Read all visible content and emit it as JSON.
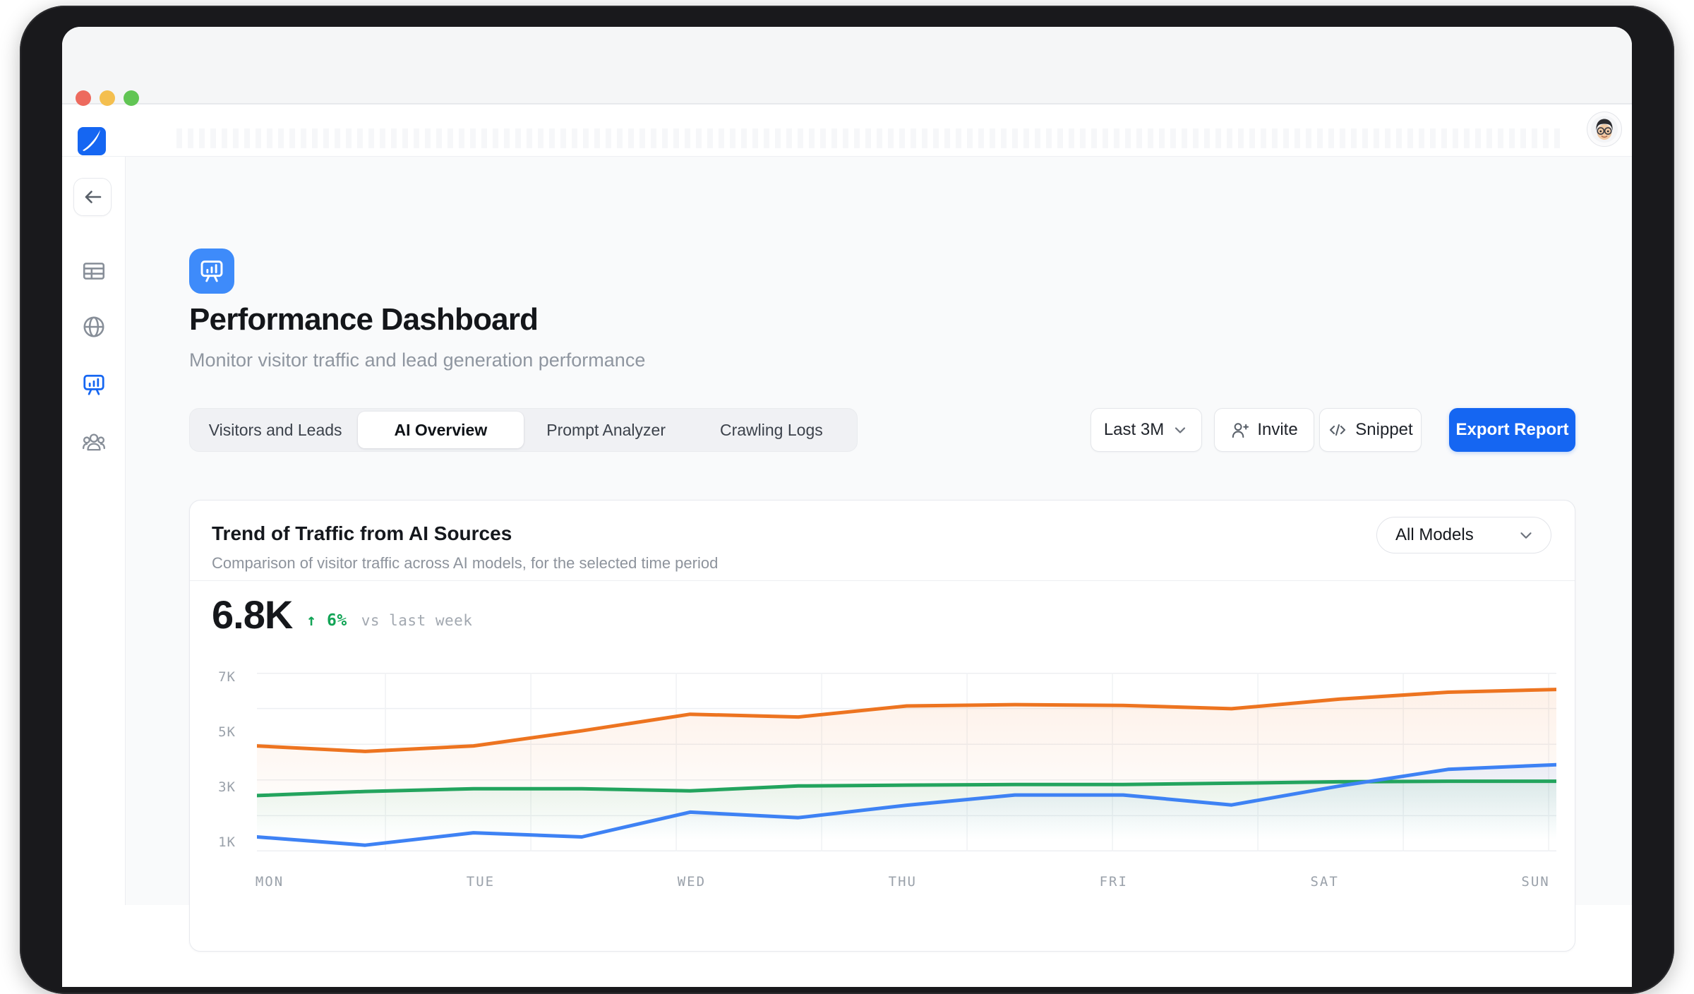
{
  "colors": {
    "brand_blue": "#1566F2",
    "header_icon_bg": "#3E8BFA",
    "traffic_red": "#ED6A5E",
    "traffic_yellow": "#F4BF4F",
    "traffic_green": "#61C554",
    "delta_green": "#12A456",
    "icon_gray": "#878E98"
  },
  "window": {
    "traffic_lights": [
      {
        "name": "close-button",
        "color": "#ED6A5E"
      },
      {
        "name": "minimize-button",
        "color": "#F4BF4F"
      },
      {
        "name": "zoom-button",
        "color": "#61C554"
      }
    ]
  },
  "sidebar": {
    "items": [
      {
        "name": "sidebar-item-tables",
        "icon": "table-icon",
        "active": false
      },
      {
        "name": "sidebar-item-web",
        "icon": "globe-icon",
        "active": false
      },
      {
        "name": "sidebar-item-performance",
        "icon": "presentation-chart-icon",
        "active": true
      },
      {
        "name": "sidebar-item-team",
        "icon": "people-icon",
        "active": false
      }
    ]
  },
  "page": {
    "title": "Performance Dashboard",
    "subtitle": "Monitor visitor traffic and lead generation performance"
  },
  "tabs": [
    {
      "label": "Visitors and Leads",
      "active": false
    },
    {
      "label": "AI Overview",
      "active": true
    },
    {
      "label": "Prompt Analyzer",
      "active": false
    },
    {
      "label": "Crawling Logs",
      "active": false
    }
  ],
  "controls": {
    "range_label": "Last 3M",
    "invite_label": "Invite",
    "snippet_label": "Snippet",
    "export_label": "Export Report"
  },
  "card": {
    "title": "Trend of Traffic from AI Sources",
    "subtitle": "Comparison of visitor traffic across AI models, for the selected time period",
    "model_filter": "All Models"
  },
  "stat": {
    "value": "6.8K",
    "delta_arrow": "↑",
    "delta": "6%",
    "comparison": "vs last week"
  },
  "chart_data": {
    "type": "line",
    "title": "Trend of Traffic from AI Sources",
    "x_categories": [
      "MON",
      "TUE",
      "WED",
      "THU",
      "FRI",
      "SAT",
      "SUN"
    ],
    "points_per_day": 2,
    "y_tick_labels": [
      "7K",
      "5K",
      "3K",
      "1K"
    ],
    "y_tick_values": [
      7000,
      5000,
      3000,
      1000
    ],
    "ylim": [
      675,
      7154
    ],
    "grid": true,
    "legend": "none",
    "headline_value": "6.8K",
    "headline_delta": "+6% vs last week",
    "series": [
      {
        "name": "orange-series",
        "color": "#ED7420",
        "values": [
          4500,
          4300,
          4500,
          5050,
          5650,
          5550,
          5950,
          6000,
          5970,
          5850,
          6200,
          6450,
          6550
        ]
      },
      {
        "name": "green-series",
        "color": "#23A45E",
        "values": [
          2700,
          2850,
          2950,
          2950,
          2870,
          3050,
          3080,
          3100,
          3100,
          3150,
          3200,
          3220,
          3220
        ]
      },
      {
        "name": "blue-series",
        "color": "#3E82F4",
        "values": [
          1200,
          900,
          1350,
          1200,
          2100,
          1900,
          2350,
          2720,
          2720,
          2360,
          3050,
          3650,
          3820
        ]
      }
    ]
  }
}
